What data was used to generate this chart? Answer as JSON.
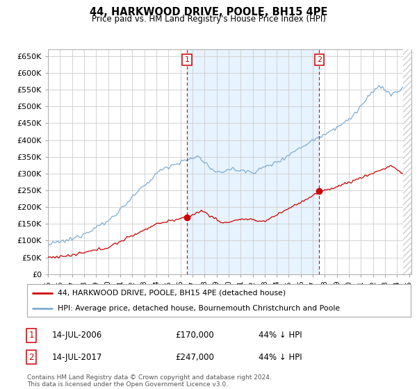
{
  "title": "44, HARKWOOD DRIVE, POOLE, BH15 4PE",
  "subtitle": "Price paid vs. HM Land Registry's House Price Index (HPI)",
  "ylim": [
    0,
    670000
  ],
  "yticks": [
    0,
    50000,
    100000,
    150000,
    200000,
    250000,
    300000,
    350000,
    400000,
    450000,
    500000,
    550000,
    600000,
    650000
  ],
  "ytick_labels": [
    "£0",
    "£50K",
    "£100K",
    "£150K",
    "£200K",
    "£250K",
    "£300K",
    "£350K",
    "£400K",
    "£450K",
    "£500K",
    "£550K",
    "£600K",
    "£650K"
  ],
  "xlim_start": 1995.0,
  "xlim_end": 2025.2,
  "sale1_year": 2006.54,
  "sale1_price": 170000,
  "sale2_year": 2017.54,
  "sale2_price": 247000,
  "red_line_color": "#cc0000",
  "blue_line_color": "#7dadd4",
  "blue_fill_color": "#ddeeff",
  "marker_color": "#cc0000",
  "legend_label_red": "44, HARKWOOD DRIVE, POOLE, BH15 4PE (detached house)",
  "legend_label_blue": "HPI: Average price, detached house, Bournemouth Christchurch and Poole",
  "table_row1": [
    "1",
    "14-JUL-2006",
    "£170,000",
    "44% ↓ HPI"
  ],
  "table_row2": [
    "2",
    "14-JUL-2017",
    "£247,000",
    "44% ↓ HPI"
  ],
  "footnote": "Contains HM Land Registry data © Crown copyright and database right 2024.\nThis data is licensed under the Open Government Licence v3.0.",
  "bg_color": "#ffffff",
  "grid_color": "#cccccc",
  "annotation_box_color": "#cc0000",
  "hatch_color": "#cccccc"
}
